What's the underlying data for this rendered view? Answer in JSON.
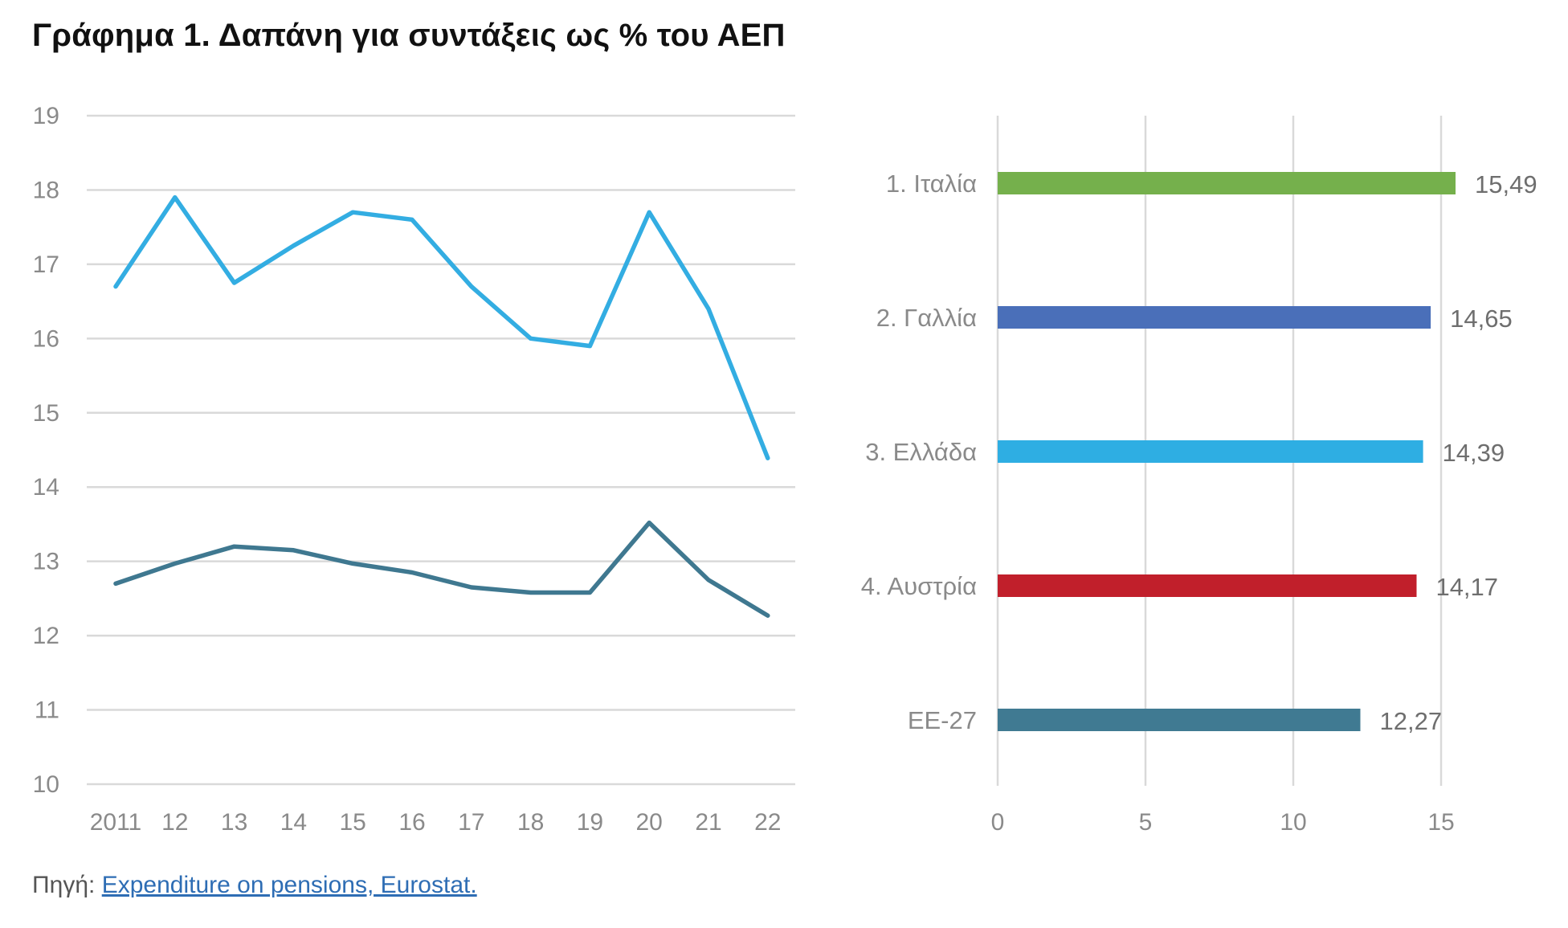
{
  "title": "Γράφημα 1. Δαπάνη για συντάξεις ως % του ΑΕΠ",
  "source": {
    "prefix": "Πηγή:",
    "link_text": "Expenditure on pensions, Eurostat."
  },
  "colors": {
    "line_light": "#33ade2",
    "line_dark": "#3f7890",
    "grid": "#d9d9d9"
  },
  "chart_data": [
    {
      "type": "line",
      "categories": [
        "2011",
        "12",
        "13",
        "14",
        "15",
        "16",
        "17",
        "18",
        "19",
        "20",
        "21",
        "22"
      ],
      "ylim": [
        10,
        19
      ],
      "yticks": [
        10,
        11,
        12,
        13,
        14,
        15,
        16,
        17,
        18,
        19
      ],
      "grid": "horizontal",
      "series": [
        {
          "color": "#33ade2",
          "values": [
            16.7,
            17.9,
            16.75,
            17.25,
            17.7,
            17.6,
            16.7,
            16.0,
            15.9,
            17.7,
            16.4,
            14.39
          ]
        },
        {
          "color": "#3f7890",
          "values": [
            12.7,
            12.97,
            13.2,
            13.15,
            12.97,
            12.85,
            12.65,
            12.58,
            12.58,
            13.52,
            12.75,
            12.27
          ]
        }
      ]
    },
    {
      "type": "bar",
      "orientation": "horizontal",
      "categories": [
        "1. Ιταλία",
        "2. Γαλλία",
        "3. Ελλάδα",
        "4. Αυστρία",
        "ΕΕ-27"
      ],
      "values": [
        15.49,
        14.65,
        14.39,
        14.17,
        12.27
      ],
      "value_labels": [
        "15,49",
        "14,65",
        "14,39",
        "14,17",
        "12,27"
      ],
      "colors": [
        "#75b04c",
        "#4a6fb9",
        "#2eaee3",
        "#c11f2b",
        "#407a92"
      ],
      "xlim": [
        0,
        15
      ],
      "xticks": [
        0,
        5,
        10,
        15
      ],
      "grid": "vertical"
    }
  ]
}
